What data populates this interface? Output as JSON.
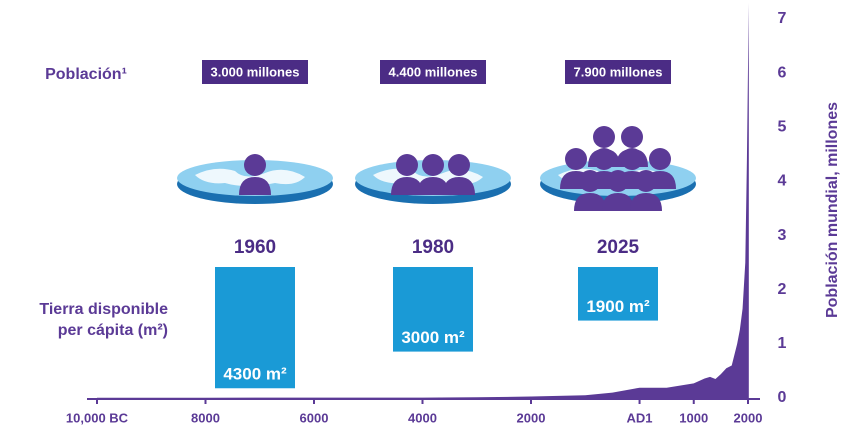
{
  "chart_data": {
    "type": "area",
    "y_label": "Población mundial, millones",
    "color": "#5b3a96",
    "x": [
      -10000,
      -8000,
      -6000,
      -4000,
      -3000,
      -2000,
      -1000,
      -500,
      1,
      500,
      1000,
      1200,
      1300,
      1400,
      1500,
      1600,
      1700,
      1800,
      1850,
      1900,
      1950,
      1980,
      2000,
      2015
    ],
    "values": [
      0.004,
      0.005,
      0.007,
      0.007,
      0.014,
      0.027,
      0.05,
      0.1,
      0.19,
      0.19,
      0.27,
      0.36,
      0.39,
      0.35,
      0.44,
      0.55,
      0.6,
      1.0,
      1.26,
      1.65,
      2.5,
      4.4,
      6.1,
      7.3
    ],
    "xlim": [
      -10000,
      2000
    ],
    "xticks": [
      {
        "value": -10000,
        "label": "10,000 BC"
      },
      {
        "value": -8000,
        "label": "8000"
      },
      {
        "value": -6000,
        "label": "6000"
      },
      {
        "value": -4000,
        "label": "4000"
      },
      {
        "value": -2000,
        "label": "2000"
      },
      {
        "value": 1,
        "label": "AD1"
      },
      1000,
      2000
    ],
    "ylim": [
      0,
      7
    ],
    "yticks": [
      0,
      1,
      2,
      3,
      4,
      5,
      6,
      7
    ],
    "infographic": {
      "population_label": "Población¹",
      "land_label": [
        "Tierra disponible",
        "per cápita (m²)"
      ],
      "land_color": "#1a9ad6",
      "milestones": [
        {
          "year": "1960",
          "population": "3.000 millones",
          "land": 4300,
          "land_label": "4300 m²"
        },
        {
          "year": "1980",
          "population": "4.400 millones",
          "land": 3000,
          "land_label": "3000 m²"
        },
        {
          "year": "2025",
          "population": "7.900 millones",
          "land": 1900,
          "land_label": "1900 m²"
        }
      ]
    }
  }
}
